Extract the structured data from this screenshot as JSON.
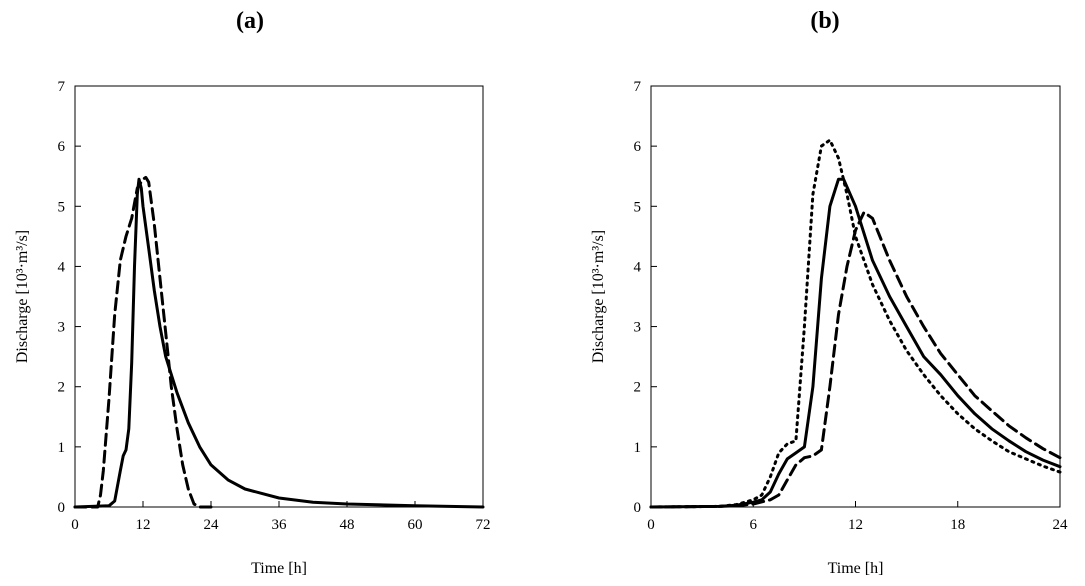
{
  "chart_data": [
    {
      "type": "line",
      "title": "(a)",
      "xlabel": "Time [h]",
      "ylabel": "Discharge [10³·m³/s]",
      "xlim": [
        0,
        72
      ],
      "ylim": [
        0,
        7
      ],
      "xticks": [
        "0",
        "12",
        "24",
        "36",
        "48",
        "60",
        "72"
      ],
      "yticks": [
        "0",
        "1",
        "2",
        "3",
        "4",
        "5",
        "6",
        "7"
      ],
      "series": [
        {
          "name": "solid",
          "style": "solid",
          "x": [
            0,
            6,
            7,
            8,
            8.5,
            9,
            9.5,
            10,
            10.5,
            11,
            11.3,
            11.7,
            12,
            13,
            14,
            15,
            16,
            18,
            20,
            22,
            24,
            27,
            30,
            36,
            42,
            48,
            60,
            72
          ],
          "y": [
            0,
            0.02,
            0.1,
            0.6,
            0.85,
            0.95,
            1.3,
            2.4,
            4.0,
            5.2,
            5.45,
            5.3,
            5.0,
            4.3,
            3.6,
            3.0,
            2.5,
            1.9,
            1.4,
            1.0,
            0.7,
            0.45,
            0.3,
            0.15,
            0.08,
            0.05,
            0.02,
            0.0
          ]
        },
        {
          "name": "dashed",
          "style": "dashed",
          "x": [
            0,
            4,
            4.5,
            5,
            6,
            7,
            8,
            9,
            10,
            11,
            12,
            12.5,
            13,
            14,
            15,
            16,
            17,
            18,
            19,
            20,
            21,
            22,
            24
          ],
          "y": [
            0,
            0,
            0.2,
            0.6,
            1.8,
            3.2,
            4.1,
            4.5,
            4.8,
            5.3,
            5.45,
            5.48,
            5.4,
            4.7,
            3.8,
            2.9,
            2.0,
            1.3,
            0.7,
            0.3,
            0.05,
            0,
            0
          ]
        }
      ]
    },
    {
      "type": "line",
      "title": "(b)",
      "xlabel": "Time [h]",
      "ylabel": "Discharge [10³·m³/s]",
      "xlim": [
        0,
        24
      ],
      "ylim": [
        0,
        7
      ],
      "xticks": [
        "0",
        "6",
        "12",
        "18",
        "24"
      ],
      "yticks": [
        "0",
        "1",
        "2",
        "3",
        "4",
        "5",
        "6",
        "7"
      ],
      "series": [
        {
          "name": "solid",
          "style": "solid",
          "x": [
            0,
            4,
            5,
            6,
            6.5,
            7,
            7.5,
            8,
            8.5,
            9,
            9.5,
            10,
            10.5,
            11,
            11.3,
            12,
            13,
            14,
            15,
            16,
            17,
            18,
            19,
            20,
            21,
            22,
            23,
            24
          ],
          "y": [
            0,
            0.01,
            0.03,
            0.08,
            0.12,
            0.25,
            0.55,
            0.8,
            0.9,
            1.0,
            2.0,
            3.8,
            5.0,
            5.45,
            5.45,
            5.0,
            4.1,
            3.5,
            3.0,
            2.5,
            2.2,
            1.85,
            1.55,
            1.3,
            1.1,
            0.92,
            0.78,
            0.67
          ]
        },
        {
          "name": "dashed",
          "style": "dashed",
          "x": [
            0,
            4,
            5,
            6,
            7,
            7.5,
            8,
            8.5,
            9,
            9.5,
            10,
            10.5,
            11,
            11.5,
            12,
            12.5,
            13,
            14,
            15,
            16,
            17,
            18,
            19,
            20,
            21,
            22,
            23,
            24
          ],
          "y": [
            0,
            0.01,
            0.02,
            0.05,
            0.12,
            0.2,
            0.45,
            0.7,
            0.82,
            0.85,
            0.95,
            2.0,
            3.2,
            4.0,
            4.6,
            4.9,
            4.8,
            4.1,
            3.5,
            3.0,
            2.55,
            2.2,
            1.85,
            1.6,
            1.35,
            1.15,
            0.97,
            0.82
          ]
        },
        {
          "name": "dotted",
          "style": "dotted",
          "x": [
            0,
            4,
            5,
            6,
            6.5,
            7,
            7.5,
            8,
            8.5,
            9,
            9.5,
            10,
            10.5,
            11,
            11.5,
            12,
            13,
            14,
            15,
            16,
            17,
            18,
            19,
            20,
            21,
            22,
            23,
            24
          ],
          "y": [
            0,
            0.01,
            0.04,
            0.12,
            0.2,
            0.5,
            0.9,
            1.05,
            1.1,
            3.0,
            5.2,
            6.0,
            6.1,
            5.8,
            5.2,
            4.5,
            3.7,
            3.1,
            2.6,
            2.2,
            1.85,
            1.55,
            1.3,
            1.1,
            0.92,
            0.8,
            0.68,
            0.58
          ]
        }
      ]
    }
  ]
}
